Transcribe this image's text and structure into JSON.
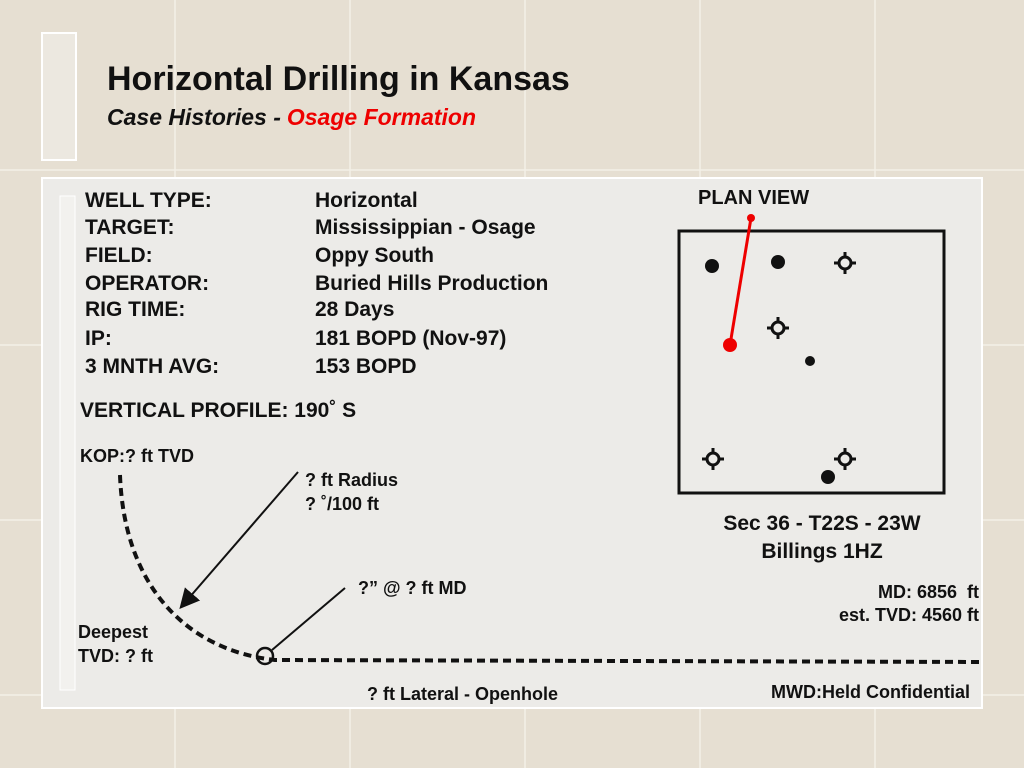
{
  "header": {
    "title": "Horizontal Drilling in Kansas",
    "subtitle_prefix": "Case Histories -",
    "subtitle_highlight": "Osage Formation"
  },
  "well_info": {
    "rows": [
      [
        "WELL TYPE:",
        "Horizontal"
      ],
      [
        "TARGET:",
        "Mississippian - Osage"
      ],
      [
        "FIELD:",
        "Oppy South"
      ],
      [
        "OPERATOR:",
        "Buried Hills Production"
      ],
      [
        "RIG TIME:",
        "28 Days"
      ],
      [
        "IP:",
        "181 BOPD (Nov-97)"
      ],
      [
        "3 MNTH AVG:",
        "153 BOPD"
      ]
    ]
  },
  "vertical_profile": {
    "title": "VERTICAL PROFILE: 190˚ S",
    "kop": "KOP:? ft TVD",
    "radius": "? ft Radius",
    "build_rate": "? ˚/100 ft",
    "casing": "?” @ ? ft MD",
    "deepest": "Deepest",
    "deepest_tvd": "TVD: ? ft",
    "lateral": "? ft Lateral - Openhole"
  },
  "plan_view": {
    "title": "PLAN VIEW",
    "section": "Sec 36 - T22S - 23W",
    "well": "Billings 1HZ"
  },
  "well_data": {
    "md": "MD: 6856  ft",
    "tvd": "est. TVD: 4560 ft",
    "mwd": "MWD:Held Confidential"
  }
}
